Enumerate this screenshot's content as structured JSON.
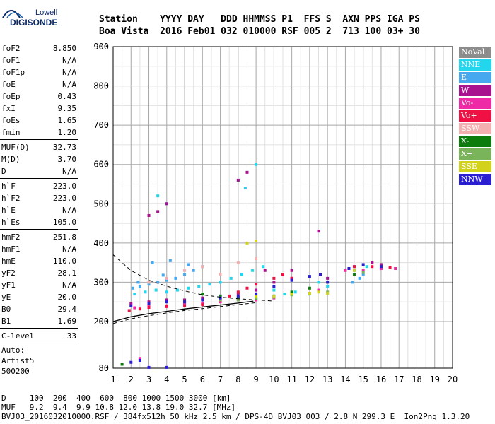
{
  "logo": {
    "line1": "Lowell",
    "line2": "DIGISONDE"
  },
  "header": {
    "line1": "Station    YYYY DAY   DDD HHMMSS P1  FFS S  AXN PPS IGA PS",
    "line2": "Boa Vista  2016 Feb01 032 010000 RSF 005 2  713 100 03+ 30"
  },
  "params": {
    "group1": [
      {
        "label": "foF2",
        "value": "8.850"
      },
      {
        "label": "foF1",
        "value": "N/A"
      },
      {
        "label": "foF1p",
        "value": "N/A"
      },
      {
        "label": "foE",
        "value": "N/A"
      },
      {
        "label": "foEp",
        "value": "0.43"
      },
      {
        "label": "fxI",
        "value": "9.35"
      },
      {
        "label": "foEs",
        "value": "1.65"
      },
      {
        "label": "fmin",
        "value": "1.20"
      }
    ],
    "group2": [
      {
        "label": "MUF(D)",
        "value": "32.73"
      },
      {
        "label": "M(D)",
        "value": "3.70"
      },
      {
        "label": "D",
        "value": "N/A"
      }
    ],
    "group3": [
      {
        "label": "h`F",
        "value": "223.0"
      },
      {
        "label": "h`F2",
        "value": "223.0"
      },
      {
        "label": "h`E",
        "value": "N/A"
      },
      {
        "label": "h`Es",
        "value": "105.0"
      }
    ],
    "group4": [
      {
        "label": "hmF2",
        "value": "251.8"
      },
      {
        "label": "hmF1",
        "value": "N/A"
      },
      {
        "label": "hmE",
        "value": "110.0"
      },
      {
        "label": "yF2",
        "value": "28.1"
      },
      {
        "label": "yF1",
        "value": "N/A"
      },
      {
        "label": "yE",
        "value": "20.0"
      },
      {
        "label": "B0",
        "value": "29.4"
      },
      {
        "label": "B1",
        "value": "1.69"
      }
    ],
    "clevel": {
      "label": "C-level",
      "value": "33"
    },
    "auto": [
      "Auto:",
      "Artist5",
      "500200"
    ]
  },
  "legend": [
    {
      "label": "NoVal",
      "color": "#8c8c8c"
    },
    {
      "label": "NNE",
      "color": "#22d6ee"
    },
    {
      "label": "E",
      "color": "#46a8ee"
    },
    {
      "label": "W",
      "color": "#a8128e"
    },
    {
      "label": "Vo-",
      "color": "#ee2aa6"
    },
    {
      "label": "Vo+",
      "color": "#ee1244"
    },
    {
      "label": "SSW",
      "color": "#f4b0b0"
    },
    {
      "label": "X-",
      "color": "#0c7c0c"
    },
    {
      "label": "X+",
      "color": "#7ab45a"
    },
    {
      "label": "SSE",
      "color": "#d2d21a"
    },
    {
      "label": "NNW",
      "color": "#2a1ed2"
    }
  ],
  "footer": {
    "line1": "D     100  200  400  600  800 1000 1500 3000 [km]",
    "line2": "MUF   9.2  9.4  9.9 10.8 12.0 13.8 19.0 32.7 [MHz]",
    "line3": "BVJ03_2016032010000.RSF / 384fx512h 50 kHz 2.5 km / DPS-4D BVJ03 003 / 2.8 N 299.3 E  Ion2Png 1.3.20"
  },
  "chart_data": {
    "type": "scatter",
    "title": "",
    "xlabel": "",
    "ylabel": "",
    "xlim": [
      1,
      20
    ],
    "ylim": [
      80,
      900
    ],
    "x_ticks": [
      1,
      2,
      3,
      4,
      5,
      6,
      7,
      8,
      9,
      10,
      11,
      12,
      13,
      14,
      15,
      16,
      17,
      18,
      19,
      20
    ],
    "y_ticks": [
      80,
      200,
      300,
      400,
      500,
      600,
      700,
      800,
      900
    ],
    "grid": true,
    "series": [
      {
        "name": "E",
        "color": "#46a8ee",
        "points": [
          [
            2.1,
            285
          ],
          [
            2.5,
            290
          ],
          [
            3.0,
            295
          ],
          [
            3.5,
            300
          ],
          [
            4.0,
            305
          ],
          [
            4.5,
            310
          ],
          [
            5.0,
            320
          ],
          [
            5.5,
            330
          ],
          [
            6.0,
            340
          ],
          [
            3.2,
            350
          ],
          [
            4.2,
            355
          ],
          [
            2.4,
            300
          ],
          [
            3.8,
            318
          ],
          [
            5.2,
            345
          ],
          [
            14.4,
            300
          ],
          [
            14.8,
            310
          ],
          [
            15.0,
            320
          ]
        ]
      },
      {
        "name": "NNE",
        "color": "#22d6ee",
        "points": [
          [
            2.2,
            270
          ],
          [
            2.8,
            275
          ],
          [
            3.4,
            280
          ],
          [
            4.0,
            275
          ],
          [
            4.6,
            280
          ],
          [
            5.2,
            285
          ],
          [
            5.8,
            290
          ],
          [
            6.4,
            295
          ],
          [
            7.0,
            300
          ],
          [
            7.6,
            310
          ],
          [
            8.2,
            320
          ],
          [
            8.8,
            330
          ],
          [
            9.4,
            340
          ],
          [
            10.0,
            280
          ],
          [
            10.6,
            270
          ],
          [
            11.2,
            275
          ],
          [
            12.5,
            300
          ],
          [
            13.0,
            290
          ],
          [
            14.5,
            330
          ],
          [
            15.2,
            340
          ],
          [
            8.0,
            560
          ],
          [
            8.4,
            540
          ],
          [
            9.0,
            600
          ],
          [
            3.5,
            520
          ],
          [
            4.0,
            500
          ]
        ]
      },
      {
        "name": "W",
        "color": "#a8128e",
        "points": [
          [
            2.0,
            245
          ],
          [
            3.0,
            250
          ],
          [
            4.0,
            255
          ],
          [
            5.0,
            255
          ],
          [
            6.0,
            260
          ],
          [
            7.0,
            265
          ],
          [
            8.0,
            270
          ],
          [
            9.0,
            280
          ],
          [
            10.0,
            300
          ],
          [
            11.0,
            310
          ],
          [
            12.6,
            320
          ],
          [
            13.0,
            310
          ],
          [
            12.5,
            430
          ],
          [
            3.0,
            470
          ],
          [
            3.5,
            480
          ],
          [
            4.0,
            500
          ],
          [
            8.0,
            560
          ],
          [
            8.5,
            580
          ],
          [
            14.5,
            340
          ],
          [
            15.5,
            350
          ],
          [
            16.0,
            345
          ],
          [
            11.0,
            330
          ],
          [
            9.5,
            330
          ]
        ]
      },
      {
        "name": "Vo-",
        "color": "#ee2aa6",
        "points": [
          [
            2.2,
            235
          ],
          [
            3.0,
            240
          ],
          [
            4.0,
            240
          ],
          [
            5.0,
            245
          ],
          [
            6.0,
            245
          ],
          [
            7.0,
            250
          ],
          [
            8.0,
            255
          ],
          [
            9.0,
            255
          ],
          [
            10.0,
            260
          ],
          [
            11.0,
            270
          ],
          [
            12.5,
            280
          ],
          [
            14.0,
            330
          ],
          [
            15.0,
            330
          ],
          [
            16.0,
            335
          ],
          [
            16.8,
            335
          ],
          [
            2.5,
            105
          ]
        ]
      },
      {
        "name": "Vo+",
        "color": "#ee1244",
        "points": [
          [
            1.9,
            228
          ],
          [
            2.5,
            232
          ],
          [
            3.0,
            236
          ],
          [
            4.0,
            238
          ],
          [
            5.0,
            240
          ],
          [
            6.0,
            243
          ],
          [
            7.0,
            255
          ],
          [
            7.5,
            265
          ],
          [
            8.0,
            275
          ],
          [
            8.5,
            285
          ],
          [
            9.0,
            295
          ],
          [
            10.0,
            310
          ],
          [
            10.5,
            320
          ],
          [
            11.0,
            310
          ],
          [
            14.5,
            340
          ],
          [
            15.5,
            340
          ],
          [
            16.5,
            338
          ]
        ]
      },
      {
        "name": "SSW",
        "color": "#f4b0b0",
        "points": [
          [
            3.0,
            300
          ],
          [
            4.0,
            310
          ],
          [
            5.0,
            330
          ],
          [
            6.0,
            340
          ],
          [
            7.0,
            320
          ],
          [
            8.0,
            350
          ],
          [
            9.0,
            360
          ]
        ]
      },
      {
        "name": "X-",
        "color": "#0c7c0c",
        "points": [
          [
            6.0,
            270
          ],
          [
            7.0,
            265
          ],
          [
            8.0,
            260
          ],
          [
            9.0,
            260
          ],
          [
            10.0,
            265
          ],
          [
            11.0,
            275
          ],
          [
            12.0,
            285
          ],
          [
            14.5,
            320
          ],
          [
            1.5,
            90
          ]
        ]
      },
      {
        "name": "X+",
        "color": "#7ab45a",
        "points": [
          [
            7.0,
            255
          ],
          [
            8.0,
            255
          ],
          [
            9.0,
            258
          ],
          [
            10.0,
            262
          ],
          [
            11.0,
            268
          ],
          [
            12.0,
            270
          ],
          [
            13.0,
            275
          ],
          [
            15.0,
            325
          ]
        ]
      },
      {
        "name": "SSE",
        "color": "#d2d21a",
        "points": [
          [
            9.0,
            265
          ],
          [
            10.0,
            265
          ],
          [
            11.0,
            270
          ],
          [
            12.0,
            272
          ],
          [
            12.5,
            275
          ],
          [
            13.0,
            272
          ],
          [
            8.5,
            400
          ],
          [
            9.0,
            405
          ],
          [
            14.5,
            330
          ]
        ]
      },
      {
        "name": "NNW",
        "color": "#2a1ed2",
        "points": [
          [
            2.0,
            240
          ],
          [
            3.0,
            245
          ],
          [
            4.0,
            250
          ],
          [
            5.0,
            250
          ],
          [
            6.0,
            255
          ],
          [
            7.0,
            260
          ],
          [
            8.0,
            265
          ],
          [
            9.0,
            270
          ],
          [
            10.0,
            290
          ],
          [
            11.0,
            305
          ],
          [
            12.0,
            315
          ],
          [
            12.6,
            320
          ],
          [
            13.0,
            300
          ],
          [
            14.2,
            335
          ],
          [
            15.0,
            345
          ],
          [
            16.0,
            340
          ],
          [
            2.0,
            95
          ],
          [
            2.5,
            100
          ],
          [
            3.0,
            82
          ],
          [
            4.0,
            82
          ]
        ]
      }
    ],
    "profile": [
      [
        1.0,
        200
      ],
      [
        2,
        212
      ],
      [
        3,
        220
      ],
      [
        4,
        226
      ],
      [
        5,
        232
      ],
      [
        6,
        237
      ],
      [
        7,
        242
      ],
      [
        8,
        247
      ],
      [
        8.85,
        252
      ]
    ],
    "dashed_upper": [
      [
        1.0,
        370
      ],
      [
        2,
        330
      ],
      [
        3,
        305
      ],
      [
        4,
        290
      ],
      [
        5,
        278
      ],
      [
        6,
        268
      ],
      [
        7,
        262
      ],
      [
        8,
        258
      ],
      [
        9,
        255
      ],
      [
        10,
        252
      ]
    ],
    "dashed_lower": [
      [
        1.0,
        195
      ],
      [
        2,
        207
      ],
      [
        3,
        215
      ],
      [
        4,
        222
      ],
      [
        5,
        228
      ],
      [
        6,
        233
      ],
      [
        7,
        238
      ],
      [
        8,
        243
      ],
      [
        9,
        248
      ]
    ]
  }
}
